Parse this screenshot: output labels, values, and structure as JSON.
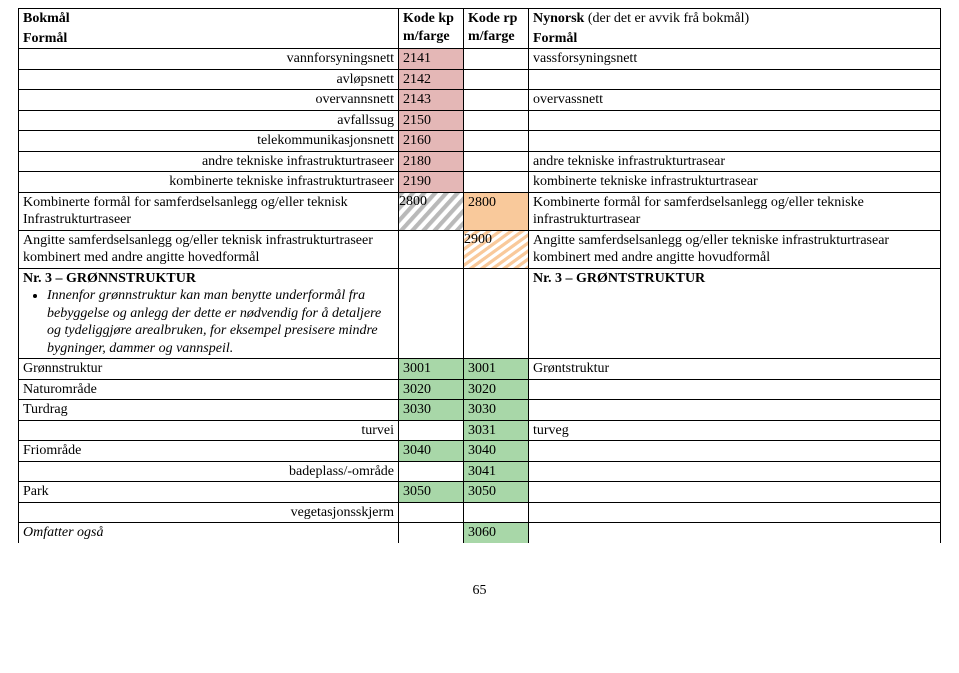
{
  "header": {
    "bokmal": "Bokmål",
    "nynorsk": "Nynorsk",
    "nynorsk_note": "(der det er avvik frå bokmål)",
    "formal_bm": "Formål",
    "kode_kp": "Kode kp\nm/farge",
    "kode_rp": "Kode rp\nm/farge",
    "formal_nn": "Formål",
    "kp_l1": "Kode kp",
    "kp_l2": "m/farge",
    "rp_l1": "Kode rp",
    "rp_l2": "m/farge"
  },
  "rows": [
    {
      "bm": "vannforsyningsnett",
      "align": "right",
      "kp": "2141",
      "kp_bg": "bgPink",
      "nn": "vassforsyningsnett"
    },
    {
      "bm": "avløpsnett",
      "align": "right",
      "kp": "2142",
      "kp_bg": "bgPink",
      "nn": ""
    },
    {
      "bm": "overvannsnett",
      "align": "right",
      "kp": "2143",
      "kp_bg": "bgPink",
      "nn": "overvassnett"
    },
    {
      "bm": "avfallssug",
      "align": "right",
      "kp": "2150",
      "kp_bg": "bgPink",
      "nn": ""
    },
    {
      "bm": "telekommunikasjonsnett",
      "align": "right",
      "kp": "2160",
      "kp_bg": "bgPink",
      "nn": ""
    },
    {
      "bm": "andre tekniske infrastrukturtraseer",
      "align": "right",
      "kp": "2180",
      "kp_bg": "bgPink",
      "nn": "andre tekniske infrastrukturtrasear"
    },
    {
      "bm": "kombinerte tekniske infrastrukturtraseer",
      "align": "right",
      "kp": "2190",
      "kp_bg": "bgPink",
      "nn": "kombinerte tekniske infrastrukturtrasear"
    }
  ],
  "komb": {
    "bm": "Kombinerte formål for samferdselsanlegg og/eller teknisk Infrastrukturtraseer",
    "kp": "2800",
    "rp": "2800",
    "nn": "Kombinerte formål for samferdselsanlegg og/eller tekniske infrastrukturtrasear"
  },
  "angitte": {
    "bm": "Angitte samferdselsanlegg og/eller teknisk infrastrukturtraseer kombinert med andre angitte hovedformål",
    "rp": "2900",
    "nn": "Angitte samferdselsanlegg og/eller tekniske infrastrukturtrasear kombinert med andre angitte hovudformål"
  },
  "nr3": {
    "bm_title": "Nr. 3 – GRØNNSTRUKTUR",
    "bm_note": "Innenfor grønnstruktur kan man benytte underformål fra bebyggelse og anlegg der dette er nødvendig for å detaljere og tydeliggjøre arealbruken, for eksempel presisere mindre bygninger, dammer og vannspeil.",
    "nn_title": "Nr. 3 – GRØNTSTRUKTUR"
  },
  "green": [
    {
      "bm": "Grønnstruktur",
      "align": "left",
      "kp": "3001",
      "rp": "3001",
      "kpbg": "bgGreen",
      "rpbg": "bgGreen",
      "nn": "Grøntstruktur"
    },
    {
      "bm": "Naturområde",
      "align": "left",
      "kp": "3020",
      "rp": "3020",
      "kpbg": "bgGreen",
      "rpbg": "bgGreen",
      "nn": ""
    },
    {
      "bm": "Turdrag",
      "align": "left",
      "kp": "3030",
      "rp": "3030",
      "kpbg": "bgGreen",
      "rpbg": "bgGreen",
      "nn": ""
    },
    {
      "bm": "turvei",
      "align": "right",
      "kp": "",
      "rp": "3031",
      "kpbg": "",
      "rpbg": "bgGreen",
      "nn": "turveg"
    },
    {
      "bm": "Friområde",
      "align": "left",
      "kp": "3040",
      "rp": "3040",
      "kpbg": "bgGreen",
      "rpbg": "bgGreen",
      "nn": ""
    },
    {
      "bm": "badeplass/-område",
      "align": "right",
      "kp": "",
      "rp": "3041",
      "kpbg": "",
      "rpbg": "bgGreen",
      "nn": ""
    },
    {
      "bm": "Park",
      "align": "left",
      "kp": "3050",
      "rp": "3050",
      "kpbg": "bgGreen",
      "rpbg": "bgGreen",
      "nn": ""
    },
    {
      "bm": "vegetasjonsskjerm",
      "align": "right",
      "kp": "",
      "rp": "",
      "kpbg": "",
      "rpbg": "",
      "nn": ""
    }
  ],
  "omfatter": {
    "bm": "Omfatter også",
    "rp": "3060",
    "rpbg": "bgGreen"
  },
  "page": "65",
  "colors": {
    "pink": "#e4b7b6",
    "orange": "#f9c99b",
    "green": "#a8d7a8",
    "diag_gray": "#b9b9b9",
    "diag_orange": "#f9c99b"
  }
}
